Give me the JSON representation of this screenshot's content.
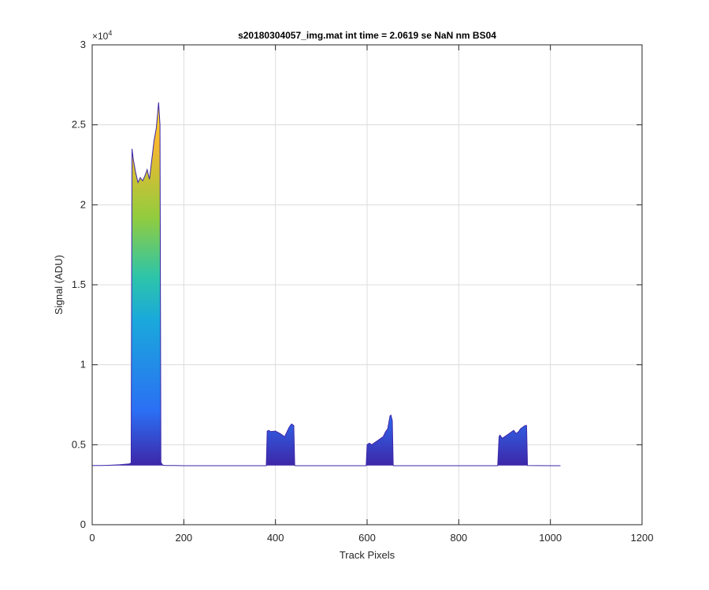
{
  "chart_data": {
    "type": "area",
    "title": "s20180304057_img.mat int time = 2.0619 se  NaN nm BS04",
    "xlabel": "Track Pixels",
    "ylabel": "Signal (ADU)",
    "xlim": [
      0,
      1200
    ],
    "ylim": [
      0,
      30000
    ],
    "x_ticks": [
      0,
      200,
      400,
      600,
      800,
      1000,
      1200
    ],
    "x_tick_labels": [
      "0",
      "200",
      "400",
      "600",
      "800",
      "1000",
      "1200"
    ],
    "y_ticks": [
      0,
      5000,
      10000,
      15000,
      20000,
      25000,
      30000
    ],
    "y_tick_labels": [
      "0",
      "0.5",
      "1",
      "1.5",
      "2",
      "2.5",
      "3"
    ],
    "y_exponent_label": "×10",
    "y_exponent_power": "4",
    "grid": true,
    "colormap": [
      "#3e26a8",
      "#2b6ff4",
      "#1aa9db",
      "#2ec5a8",
      "#92cc3e",
      "#f5b82f",
      "#f9dd21"
    ],
    "baseline": 3700,
    "series": [
      {
        "x": [
          0,
          20,
          40,
          60,
          80,
          85,
          87,
          90,
          95,
          100,
          105,
          110,
          115,
          120,
          125,
          130,
          135,
          140,
          145,
          148,
          150,
          153,
          155,
          160,
          180,
          200,
          300,
          380,
          382,
          385,
          390,
          400,
          410,
          420,
          425,
          430,
          435,
          440,
          442,
          445,
          450,
          500,
          580,
          598,
          600,
          605,
          610,
          615,
          620,
          625,
          630,
          635,
          640,
          645,
          650,
          652,
          655,
          657,
          660,
          700,
          800,
          885,
          888,
          890,
          895,
          900,
          905,
          910,
          915,
          920,
          925,
          930,
          935,
          940,
          945,
          948,
          950,
          1000,
          1022
        ],
        "y": [
          3700,
          3700,
          3720,
          3750,
          3800,
          3850,
          23500,
          22800,
          22000,
          21400,
          21700,
          21500,
          21800,
          22200,
          21600,
          22800,
          24000,
          24800,
          26400,
          25000,
          3900,
          3760,
          3720,
          3700,
          3700,
          3690,
          3690,
          3690,
          5850,
          5900,
          5820,
          5850,
          5700,
          5500,
          5800,
          6100,
          6300,
          6200,
          3700,
          3690,
          3690,
          3690,
          3690,
          3690,
          5000,
          5100,
          5000,
          5100,
          5200,
          5300,
          5400,
          5500,
          5800,
          6000,
          6800,
          6850,
          6500,
          3700,
          3690,
          3690,
          3690,
          3690,
          5500,
          5600,
          5400,
          5500,
          5600,
          5700,
          5800,
          5900,
          5700,
          5800,
          6000,
          6100,
          6200,
          6200,
          3700,
          3690,
          3690
        ]
      }
    ]
  }
}
